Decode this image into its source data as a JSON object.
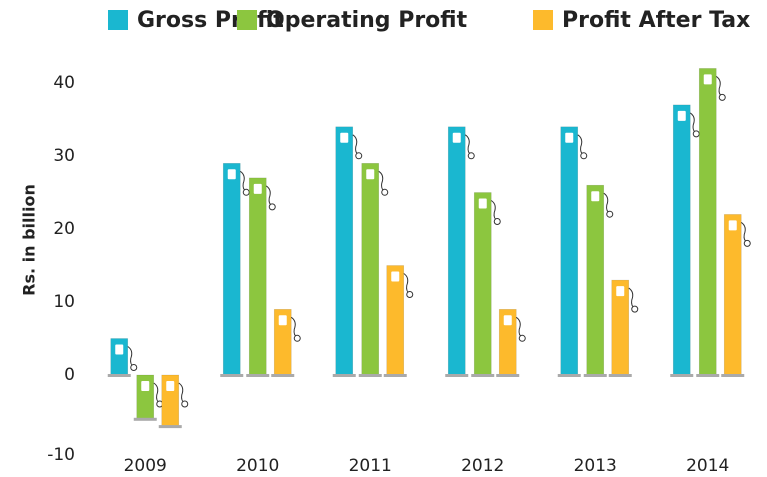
{
  "chart_data": {
    "type": "bar",
    "categories": [
      "2009",
      "2010",
      "2011",
      "2012",
      "2013",
      "2014"
    ],
    "series": [
      {
        "name": "Gross Profit",
        "color": "#1ab7d0",
        "values": [
          5,
          29,
          34,
          34,
          34,
          37
        ]
      },
      {
        "name": "Operating Profit",
        "color": "#8cc63f",
        "values": [
          -6,
          27,
          29,
          25,
          26,
          42
        ]
      },
      {
        "name": "Profit After Tax",
        "color": "#fdba2c",
        "values": [
          -7,
          9,
          15,
          9,
          13,
          22
        ]
      }
    ],
    "y_label": "Rs. in billion",
    "ylim": [
      -10,
      44
    ],
    "yticks": [
      -10,
      0,
      10,
      20,
      30,
      40
    ],
    "grid": false,
    "legend": "top"
  }
}
